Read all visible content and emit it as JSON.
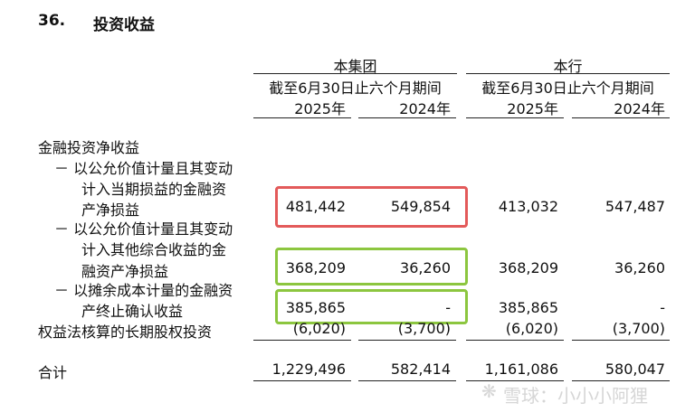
{
  "section": {
    "number": "36.",
    "title": "投资收益"
  },
  "columns": {
    "group": "本集团",
    "bank": "本行",
    "period": "截至6月30日止六个月期间",
    "years": [
      "2025年",
      "2024年"
    ]
  },
  "rows": {
    "header_label": "金融投资净收益",
    "fvtpl": {
      "label_lines": [
        "－ 以公允价值计量且其变动",
        "计入当期损益的金融资",
        "产净损益"
      ],
      "values": [
        "481,442",
        "549,854",
        "413,032",
        "547,487"
      ]
    },
    "fvoci": {
      "label_lines": [
        "－ 以公允价值计量且其变动",
        "计入其他综合收益的金",
        "融资产净损益"
      ],
      "values": [
        "368,209",
        "36,260",
        "368,209",
        "36,260"
      ]
    },
    "amortized": {
      "label_lines": [
        "－ 以摊余成本计量的金融资",
        "产终止确认收益"
      ],
      "values": [
        "385,865",
        "-",
        "385,865",
        "-"
      ]
    },
    "equity": {
      "label": "权益法核算的长期股权投资",
      "values": [
        "(6,020)",
        "(3,700)",
        "(6,020)",
        "(3,700)"
      ]
    },
    "total": {
      "label": "合计",
      "values": [
        "1,229,496",
        "582,414",
        "1,161,086",
        "580,047"
      ]
    }
  },
  "watermark": "雪球：小小小阿狸"
}
